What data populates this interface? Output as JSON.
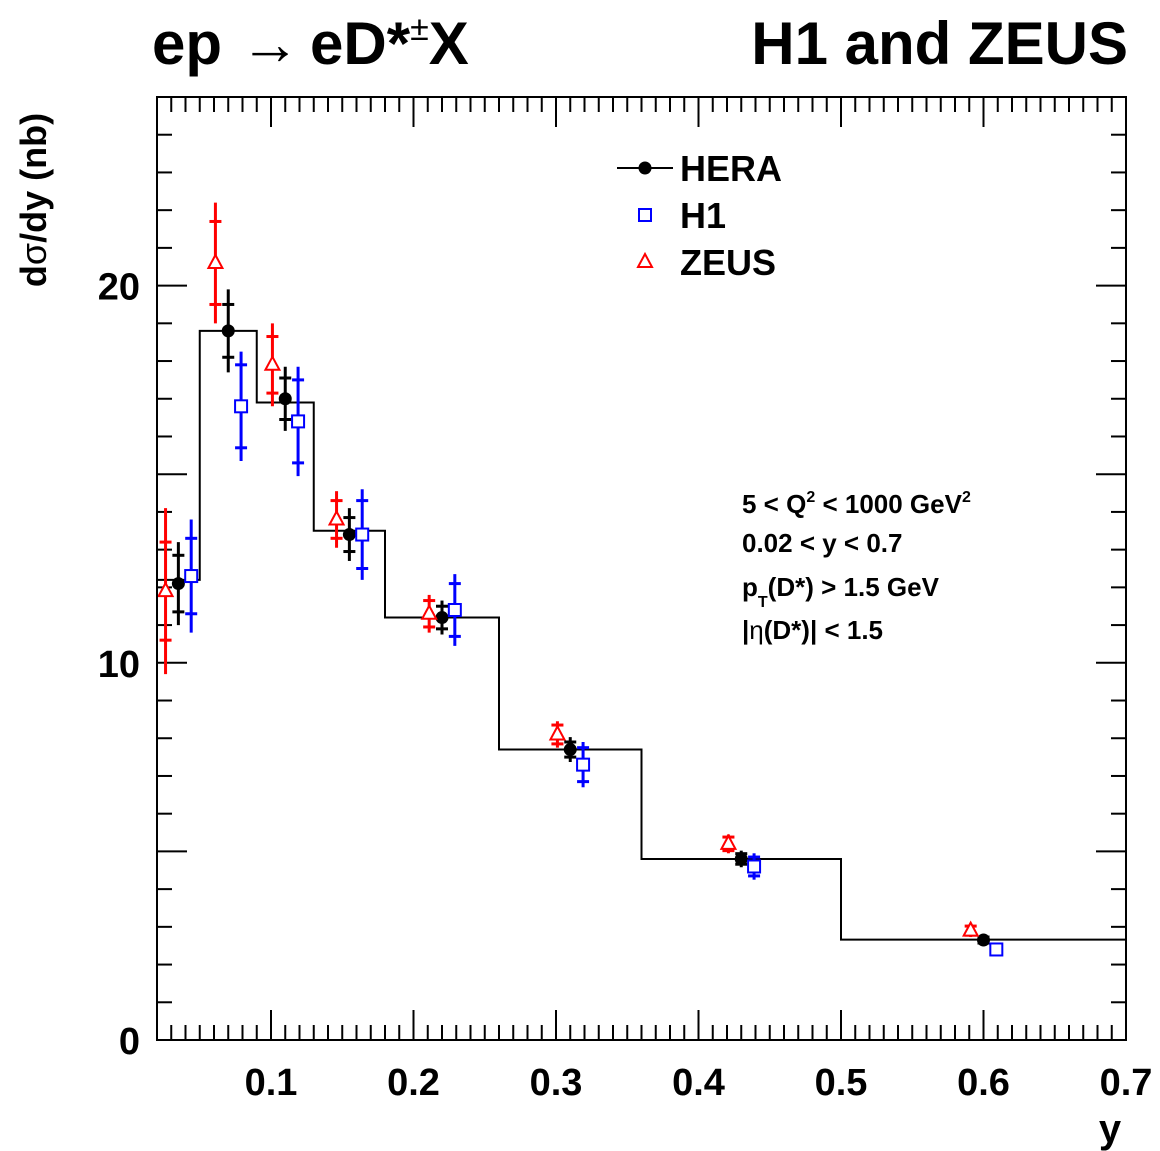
{
  "header": {
    "title_left": "ep",
    "title_arrow": "→",
    "title_rest": "eD*",
    "title_sup": "±",
    "title_x": "X",
    "title_right": "H1 and ZEUS"
  },
  "cuts": {
    "line1_a": "5 < Q",
    "line1_sup1": "2",
    "line1_b": " < 1000 GeV",
    "line1_sup2": "2",
    "line2": "0.02 < y < 0.7",
    "line3_a": "p",
    "line3_sub": "T",
    "line3_b": "(D*) > 1.5 GeV",
    "line4_a": "|",
    "line4_eta": "η",
    "line4_b": "(D*)| < 1.5"
  },
  "chart_data": {
    "type": "scatter",
    "xlabel": "y",
    "ylabel_d": "d",
    "ylabel_sigma": "σ",
    "ylabel_rest": "/dy (nb)",
    "xlim": [
      0.02,
      0.7
    ],
    "ylim": [
      0,
      25
    ],
    "xticks": [
      0.1,
      0.2,
      0.3,
      0.4,
      0.5,
      0.6,
      0.7
    ],
    "xtick_labels": [
      "0.1",
      "0.2",
      "0.3",
      "0.4",
      "0.5",
      "0.6",
      "0.7"
    ],
    "yticks": [
      0,
      10,
      20
    ],
    "ytick_labels": [
      "0",
      "10",
      "20"
    ],
    "legend_position": "top-right",
    "theory_histogram": {
      "edges": [
        0.02,
        0.05,
        0.09,
        0.13,
        0.18,
        0.26,
        0.36,
        0.5,
        0.7
      ],
      "values": [
        12.2,
        18.8,
        16.9,
        13.5,
        11.2,
        7.7,
        4.8,
        2.66
      ]
    },
    "series": [
      {
        "name": "HERA",
        "color": "#000000",
        "marker": "filled-circle",
        "x": [
          0.035,
          0.07,
          0.11,
          0.155,
          0.22,
          0.31,
          0.43,
          0.6
        ],
        "y": [
          12.1,
          18.8,
          17.0,
          13.4,
          11.2,
          7.7,
          4.8,
          2.65
        ],
        "err_stat": [
          0.75,
          0.7,
          0.55,
          0.45,
          0.3,
          0.2,
          0.14,
          0.08
        ],
        "err_tot": [
          1.1,
          1.1,
          0.85,
          0.7,
          0.45,
          0.33,
          0.22,
          0.12
        ]
      },
      {
        "name": "H1",
        "color": "#0000ff",
        "marker": "open-square",
        "x": [
          0.044,
          0.079,
          0.119,
          0.164,
          0.229,
          0.319,
          0.439,
          0.609
        ],
        "y": [
          12.3,
          16.8,
          16.4,
          13.4,
          11.4,
          7.3,
          4.6,
          2.4
        ],
        "err_stat": [
          1.0,
          1.1,
          1.1,
          0.9,
          0.7,
          0.45,
          0.25,
          0.1
        ],
        "err_tot": [
          1.5,
          1.45,
          1.45,
          1.2,
          0.95,
          0.6,
          0.35,
          0.15
        ]
      },
      {
        "name": "ZEUS",
        "color": "#ff0000",
        "marker": "open-triangle",
        "x": [
          0.026,
          0.061,
          0.101,
          0.146,
          0.211,
          0.301,
          0.421,
          0.591
        ],
        "y": [
          11.9,
          20.6,
          17.9,
          13.8,
          11.3,
          8.1,
          5.2,
          2.9
        ],
        "err_stat": [
          1.3,
          1.1,
          0.75,
          0.5,
          0.35,
          0.25,
          0.18,
          0.12
        ],
        "err_tot": [
          2.2,
          1.6,
          1.1,
          0.75,
          0.5,
          0.35,
          0.25,
          0.17
        ]
      }
    ]
  }
}
